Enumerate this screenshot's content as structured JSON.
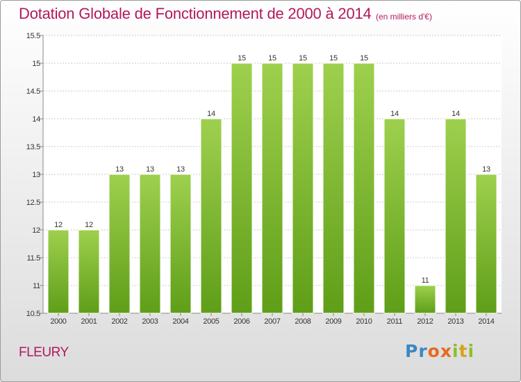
{
  "header": {
    "title": "Dotation Globale de Fonctionnement de 2000 à 2014",
    "unit": "(en milliers d'€)"
  },
  "footer": {
    "commune": "FLEURY",
    "logo": "Proxiti"
  },
  "colors": {
    "title": "#b2185d",
    "bar_top": "#9ed04e",
    "bar_bottom": "#5f9e18",
    "logo": [
      "#3b87c4",
      "#e86a20",
      "#8cbf2a",
      "#d6a21c"
    ]
  },
  "chart_data": {
    "type": "bar",
    "categories": [
      "2000",
      "2001",
      "2002",
      "2003",
      "2004",
      "2005",
      "2006",
      "2007",
      "2008",
      "2009",
      "2010",
      "2011",
      "2012",
      "2013",
      "2014"
    ],
    "values": [
      12,
      12,
      13,
      13,
      13,
      14,
      15,
      15,
      15,
      15,
      15,
      14,
      11,
      14,
      13
    ],
    "value_labels": [
      "12",
      "12",
      "13",
      "13",
      "13",
      "14",
      "15",
      "15",
      "15",
      "15",
      "15",
      "14",
      "11",
      "14",
      "13"
    ],
    "y_ticks": [
      10.5,
      11,
      11.5,
      12,
      12.5,
      13,
      13.5,
      14,
      14.5,
      15,
      15.5
    ],
    "y_tick_labels": [
      "10.5",
      "11",
      "11.5",
      "12",
      "12.5",
      "13",
      "13.5",
      "14",
      "14.5",
      "15",
      "15.5"
    ],
    "ylim": [
      10.5,
      15.5
    ],
    "grid": true,
    "legend": "none",
    "xlabel": "",
    "ylabel": ""
  }
}
